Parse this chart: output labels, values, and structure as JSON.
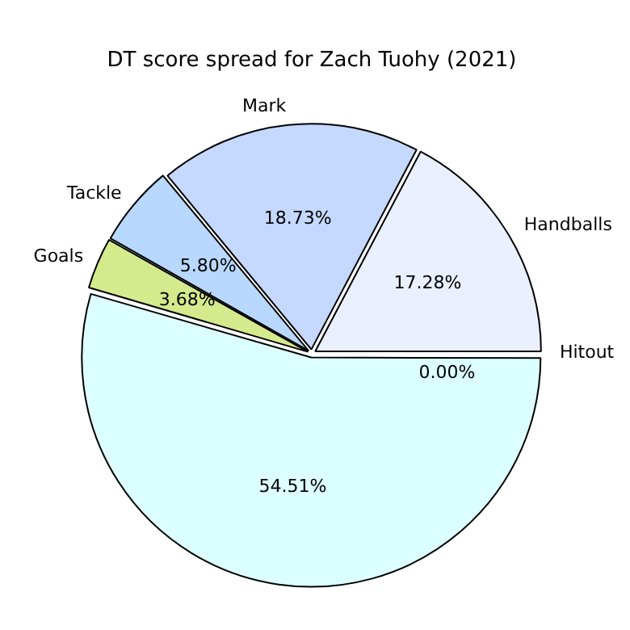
{
  "chart_data": {
    "type": "pie",
    "title": "DT score spread for Zach Tuohy (2021)",
    "categories": [
      "Hitout",
      "Handballs",
      "Mark",
      "Tackle",
      "Goals",
      null
    ],
    "values": [
      0,
      17.28,
      18.73,
      5.8,
      3.68,
      54.51
    ],
    "value_labels": [
      "0.00%",
      "17.28%",
      "18.73%",
      "5.80%",
      "3.68%",
      "54.51%"
    ],
    "colors": [
      "#ffe4e4",
      "#eaf0ff",
      "#c5d8ff",
      "#b8d8ff",
      "#d4ea8c",
      "#dcffff"
    ],
    "legend": false
  }
}
